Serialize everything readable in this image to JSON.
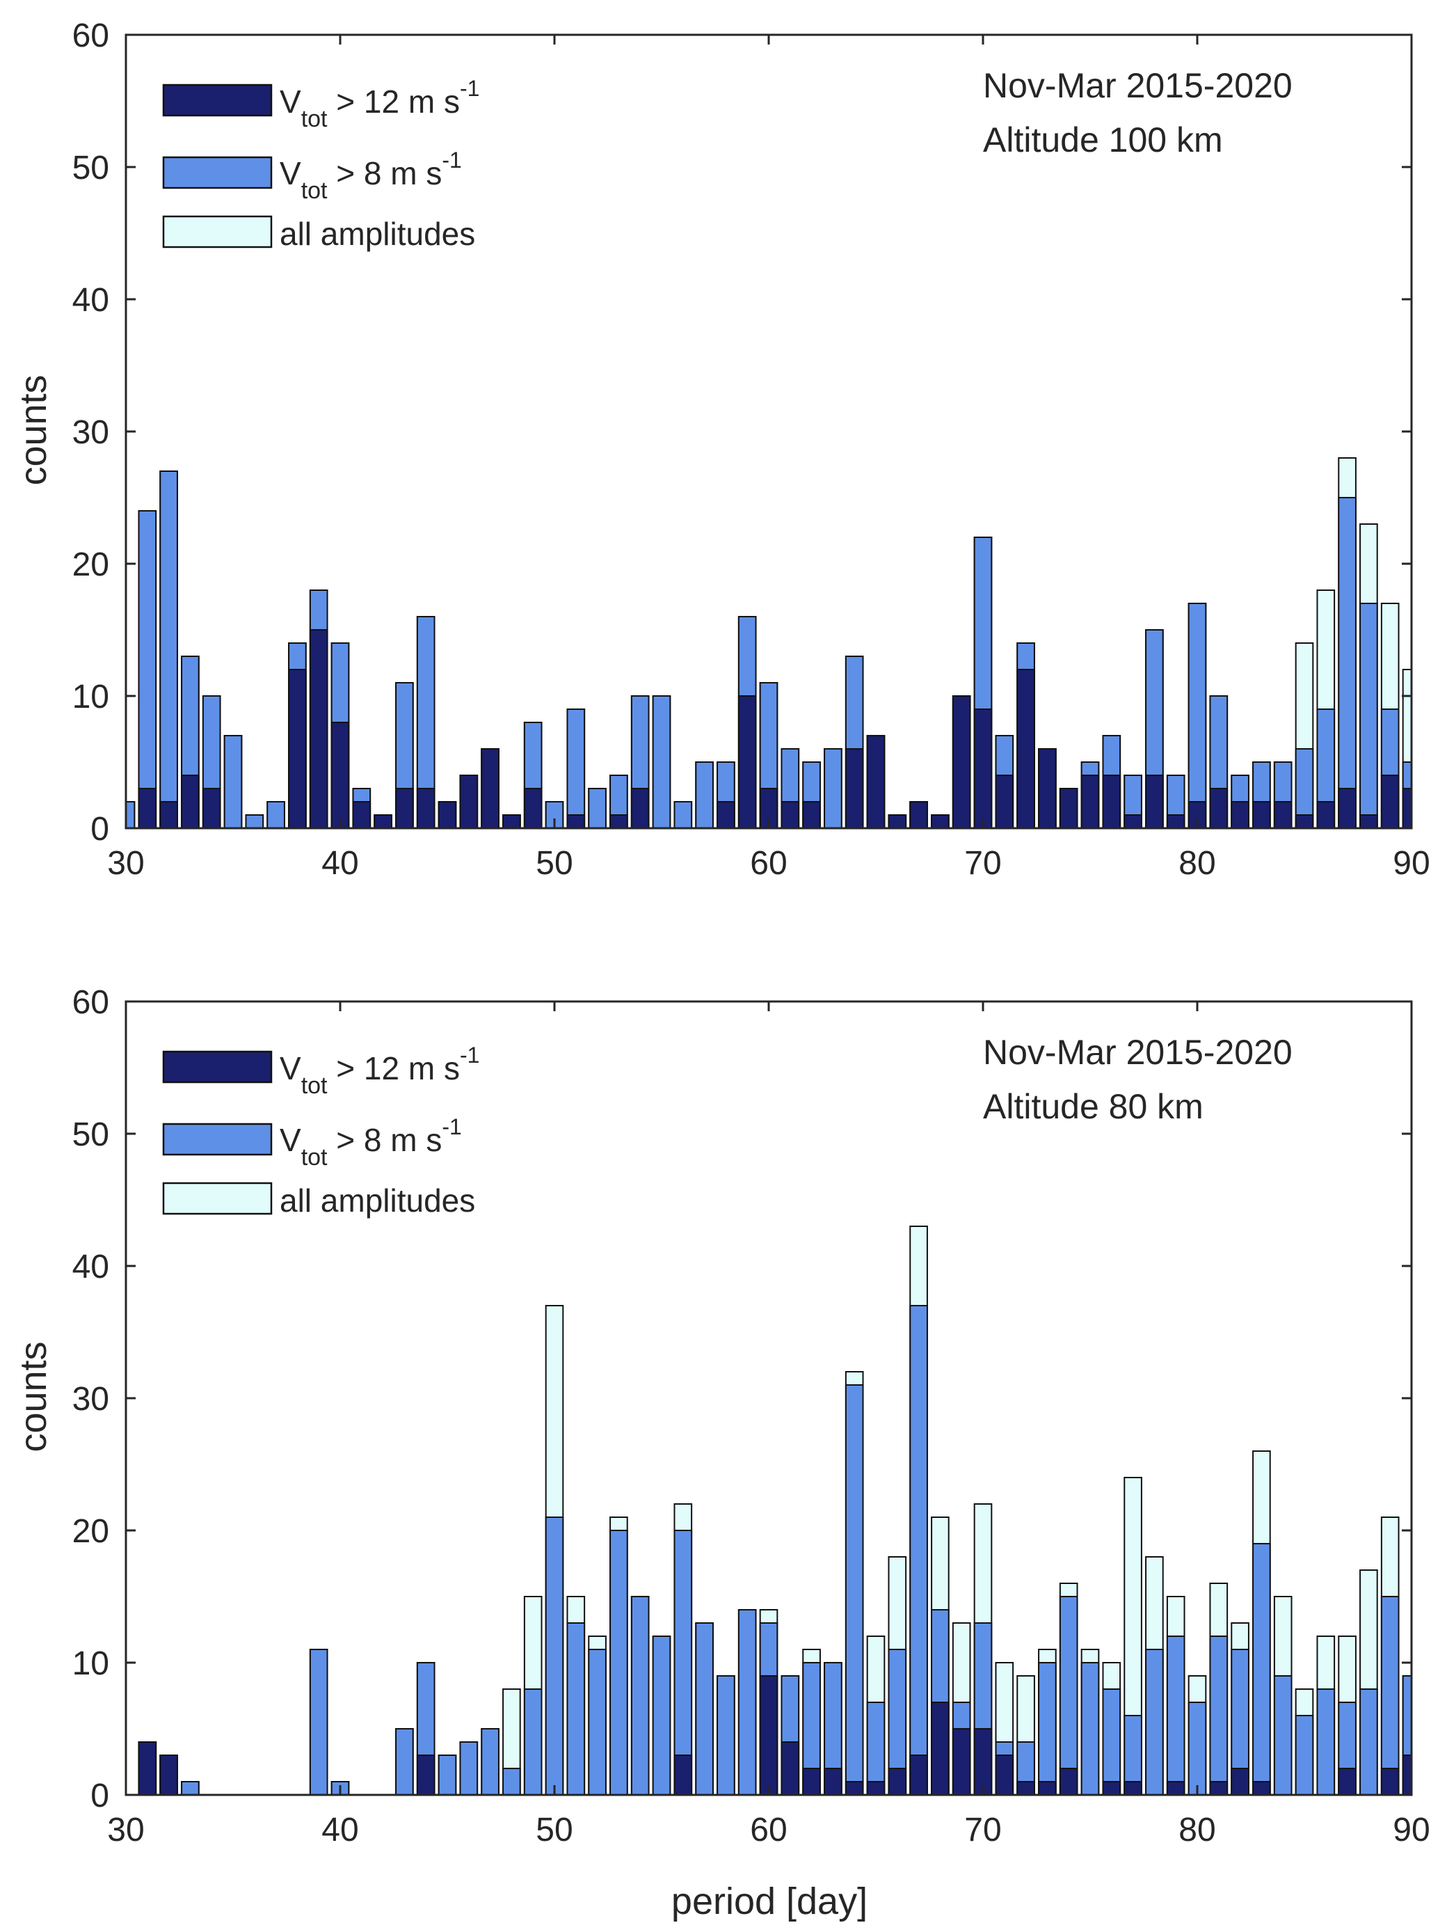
{
  "colors": {
    "dark": "#1a1f6e",
    "mid": "#5f90e8",
    "light": "#e2fcfc",
    "edge": "#111111",
    "axis": "#262626"
  },
  "chart_data": [
    {
      "type": "bar",
      "stacking": "overlay",
      "xlabel": "",
      "ylabel": "counts",
      "xlim": [
        30,
        90
      ],
      "ylim": [
        0,
        60
      ],
      "xticks": [
        "30",
        "40",
        "50",
        "60",
        "70",
        "80",
        "90"
      ],
      "yticks": [
        "0",
        "10",
        "20",
        "30",
        "40",
        "50",
        "60"
      ],
      "annotation": [
        "Nov-Mar 2015-2020",
        "Altitude 100 km"
      ],
      "legend": {
        "position": "top-left",
        "entries": [
          {
            "main": "V",
            "sub": "tot",
            "rest": " > 12 m s",
            "sup": "-1"
          },
          {
            "main": "V",
            "sub": "tot",
            "rest": " > 8 m s",
            "sup": "-1"
          },
          {
            "main": "all amplitudes",
            "sub": "",
            "rest": "",
            "sup": ""
          }
        ]
      },
      "x": [
        30,
        31,
        32,
        33,
        34,
        35,
        36,
        37,
        38,
        39,
        40,
        41,
        42,
        43,
        44,
        45,
        46,
        47,
        48,
        49,
        50,
        51,
        52,
        53,
        54,
        55,
        56,
        57,
        58,
        59,
        60,
        61,
        62,
        63,
        64,
        65,
        66,
        67,
        68,
        69,
        70,
        71,
        72,
        73,
        74,
        75,
        76,
        77,
        78,
        79,
        80,
        81,
        82,
        83,
        84,
        85,
        86,
        87,
        88,
        89,
        90
      ],
      "series": [
        {
          "name": "all amplitudes",
          "values": [
            2,
            24,
            27,
            13,
            10,
            7,
            1,
            2,
            14,
            18,
            14,
            3,
            1,
            11,
            16,
            2,
            4,
            6,
            1,
            8,
            2,
            9,
            3,
            4,
            10,
            10,
            2,
            5,
            5,
            16,
            11,
            6,
            5,
            6,
            13,
            7,
            1,
            2,
            1,
            10,
            22,
            7,
            14,
            6,
            3,
            5,
            7,
            4,
            15,
            4,
            17,
            10,
            4,
            5,
            5,
            14,
            18,
            28,
            23,
            17,
            12
          ]
        },
        {
          "name": "Vtot > 8 m s-1",
          "values": [
            2,
            24,
            27,
            13,
            10,
            7,
            1,
            2,
            14,
            18,
            14,
            3,
            1,
            11,
            16,
            2,
            4,
            6,
            1,
            8,
            2,
            9,
            3,
            4,
            10,
            10,
            2,
            5,
            5,
            16,
            11,
            6,
            5,
            6,
            13,
            7,
            1,
            2,
            1,
            10,
            22,
            7,
            14,
            6,
            3,
            5,
            7,
            4,
            15,
            4,
            17,
            10,
            4,
            5,
            5,
            6,
            9,
            25,
            17,
            9,
            5
          ]
        },
        {
          "name": "Vtot > 12 m s-1",
          "values": [
            0,
            3,
            2,
            4,
            3,
            0,
            0,
            0,
            12,
            15,
            8,
            2,
            1,
            3,
            3,
            2,
            4,
            6,
            1,
            3,
            0,
            1,
            0,
            1,
            3,
            0,
            0,
            0,
            2,
            10,
            3,
            2,
            2,
            0,
            6,
            7,
            1,
            2,
            1,
            10,
            9,
            4,
            12,
            6,
            3,
            4,
            4,
            1,
            4,
            1,
            2,
            3,
            2,
            2,
            2,
            1,
            2,
            3,
            1,
            4,
            3
          ]
        }
      ]
    },
    {
      "type": "bar",
      "stacking": "overlay",
      "xlabel": "period [day]",
      "ylabel": "counts",
      "xlim": [
        30,
        90
      ],
      "ylim": [
        0,
        60
      ],
      "xticks": [
        "30",
        "40",
        "50",
        "60",
        "70",
        "80",
        "90"
      ],
      "yticks": [
        "0",
        "10",
        "20",
        "30",
        "40",
        "50",
        "60"
      ],
      "annotation": [
        "Nov-Mar 2015-2020",
        "Altitude 80 km"
      ],
      "legend": {
        "position": "top-left",
        "entries": [
          {
            "main": "V",
            "sub": "tot",
            "rest": " > 12 m s",
            "sup": "-1"
          },
          {
            "main": "V",
            "sub": "tot",
            "rest": " > 8 m s",
            "sup": "-1"
          },
          {
            "main": "all amplitudes",
            "sub": "",
            "rest": "",
            "sup": ""
          }
        ]
      },
      "x": [
        30,
        31,
        32,
        33,
        34,
        35,
        36,
        37,
        38,
        39,
        40,
        41,
        42,
        43,
        44,
        45,
        46,
        47,
        48,
        49,
        50,
        51,
        52,
        53,
        54,
        55,
        56,
        57,
        58,
        59,
        60,
        61,
        62,
        63,
        64,
        65,
        66,
        67,
        68,
        69,
        70,
        71,
        72,
        73,
        74,
        75,
        76,
        77,
        78,
        79,
        80,
        81,
        82,
        83,
        84,
        85,
        86,
        87,
        88,
        89,
        90
      ],
      "series": [
        {
          "name": "all amplitudes",
          "values": [
            0,
            4,
            3,
            1,
            0,
            0,
            0,
            0,
            0,
            11,
            1,
            0,
            0,
            5,
            10,
            3,
            4,
            5,
            8,
            15,
            37,
            15,
            12,
            21,
            15,
            12,
            22,
            13,
            9,
            14,
            14,
            9,
            11,
            10,
            32,
            12,
            18,
            43,
            21,
            13,
            22,
            10,
            9,
            11,
            16,
            11,
            10,
            24,
            18,
            15,
            9,
            16,
            13,
            26,
            15,
            8,
            12,
            12,
            17,
            21,
            9
          ]
        },
        {
          "name": "Vtot > 8 m s-1",
          "values": [
            0,
            4,
            3,
            1,
            0,
            0,
            0,
            0,
            0,
            11,
            1,
            0,
            0,
            5,
            10,
            3,
            4,
            5,
            2,
            8,
            21,
            13,
            11,
            20,
            15,
            12,
            20,
            13,
            9,
            14,
            13,
            9,
            10,
            10,
            31,
            7,
            11,
            37,
            14,
            7,
            13,
            4,
            4,
            10,
            15,
            10,
            8,
            6,
            11,
            12,
            7,
            12,
            11,
            19,
            9,
            6,
            8,
            7,
            8,
            15,
            9
          ]
        },
        {
          "name": "Vtot > 12 m s-1",
          "values": [
            0,
            4,
            3,
            0,
            0,
            0,
            0,
            0,
            0,
            0,
            0,
            0,
            0,
            0,
            3,
            0,
            0,
            0,
            0,
            0,
            0,
            0,
            0,
            0,
            0,
            0,
            3,
            0,
            0,
            0,
            9,
            4,
            2,
            2,
            1,
            1,
            2,
            3,
            7,
            5,
            5,
            3,
            1,
            1,
            2,
            0,
            1,
            1,
            0,
            1,
            0,
            1,
            2,
            1,
            0,
            0,
            0,
            2,
            0,
            2,
            3
          ]
        }
      ]
    }
  ]
}
